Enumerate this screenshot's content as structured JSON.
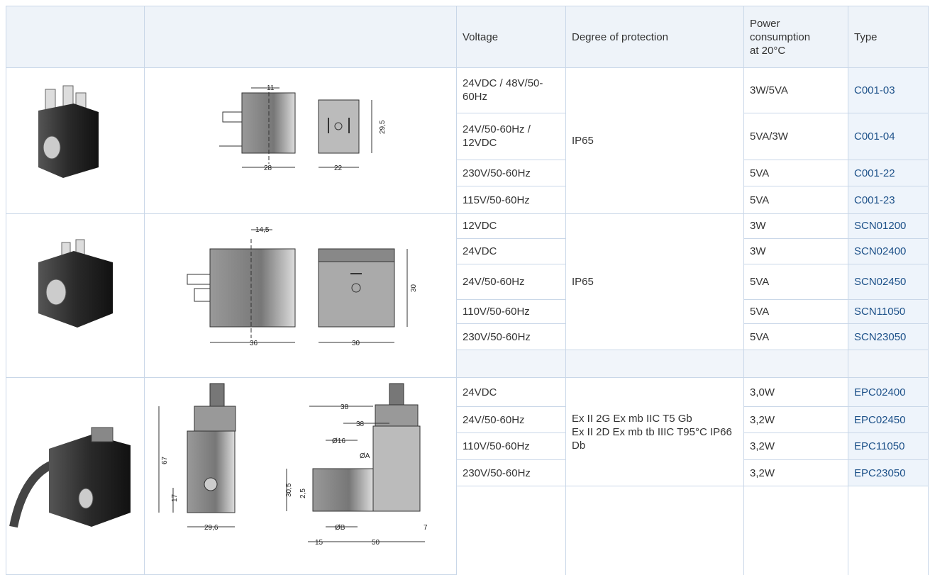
{
  "table": {
    "header": {
      "voltage": "Voltage",
      "protection": "Degree of protection",
      "power": "Power consumption at 20°C",
      "type": "Type"
    },
    "groups": [
      {
        "protection": [
          "IP65"
        ],
        "dimensions": [
          "11",
          "28",
          "22",
          "29,5"
        ],
        "rows": [
          {
            "voltage": "24VDC / 48V/50-60Hz",
            "power": "3W/5VA",
            "type": "C001-03"
          },
          {
            "voltage": "24V/50-60Hz / 12VDC",
            "power": "5VA/3W",
            "type": "C001-04"
          },
          {
            "voltage": "230V/50-60Hz",
            "power": "5VA",
            "type": "C001-22"
          },
          {
            "voltage": "115V/50-60Hz",
            "power": "5VA",
            "type": "C001-23"
          }
        ]
      },
      {
        "protection": [
          "IP65"
        ],
        "dimensions": [
          "14,5",
          "36",
          "30",
          "30"
        ],
        "rows": [
          {
            "voltage": "12VDC",
            "power": "3W",
            "type": "SCN01200"
          },
          {
            "voltage": "24VDC",
            "power": "3W",
            "type": "SCN02400"
          },
          {
            "voltage": "24V/50-60Hz",
            "power": "5VA",
            "type": "SCN02450"
          },
          {
            "voltage": "110V/50-60Hz",
            "power": "5VA",
            "type": "SCN11050"
          },
          {
            "voltage": "230V/50-60Hz",
            "power": "5VA",
            "type": "SCN23050"
          }
        ]
      },
      {
        "protection": [
          "Ex II 2G Ex mb IIC T5 Gb",
          "Ex II 2D Ex mb tb IIIC T95°C IP66 Db"
        ],
        "dimensions": [
          "67",
          "17",
          "29,6",
          "38",
          "38",
          "Ø16",
          "ØA",
          "30,5",
          "2,5",
          "ØB",
          "15",
          "50",
          "7"
        ],
        "rows": [
          {
            "voltage": "24VDC",
            "power": "3,0W",
            "type": "EPC02400"
          },
          {
            "voltage": "24V/50-60Hz",
            "power": "3,2W",
            "type": "EPC02450"
          },
          {
            "voltage": "110V/50-60Hz",
            "power": "3,2W",
            "type": "EPC11050"
          },
          {
            "voltage": "230V/50-60Hz",
            "power": "3,2W",
            "type": "EPC23050"
          }
        ]
      }
    ]
  }
}
